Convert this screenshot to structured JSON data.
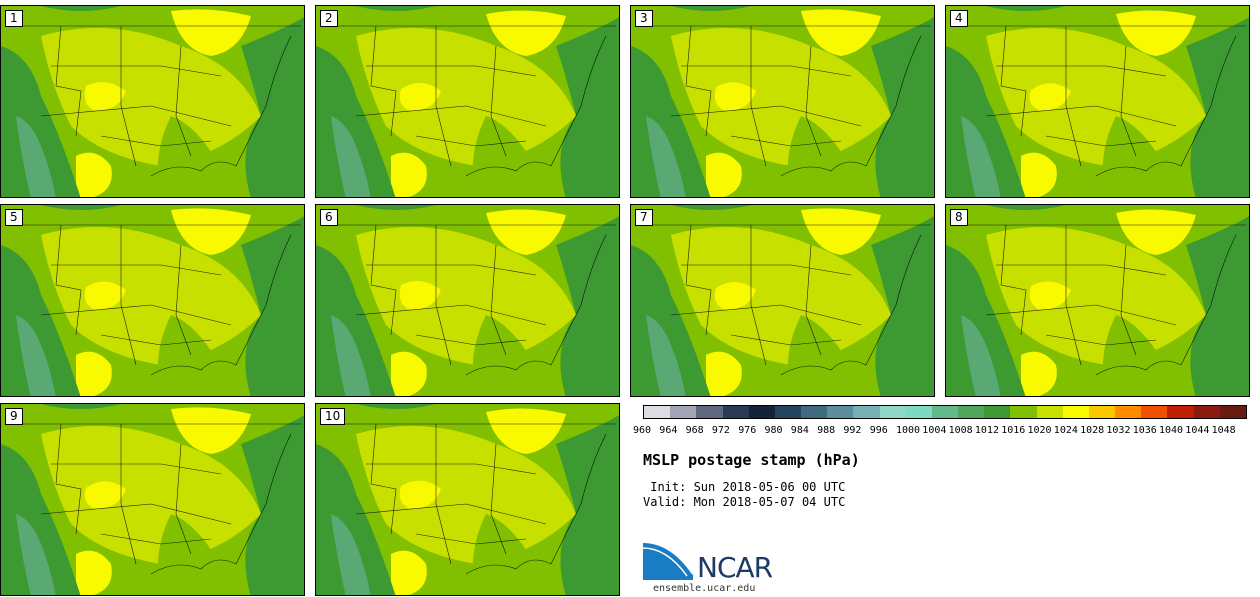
{
  "panels": [
    "1",
    "2",
    "3",
    "4",
    "5",
    "6",
    "7",
    "8",
    "9",
    "10"
  ],
  "colorbar": {
    "labels": [
      "960",
      "964",
      "968",
      "972",
      "976",
      "980",
      "984",
      "988",
      "992",
      "996",
      "1000",
      "1004",
      "1008",
      "1012",
      "1016",
      "1020",
      "1024",
      "1028",
      "1032",
      "1036",
      "1040",
      "1044",
      "1048"
    ],
    "colors": [
      "#dcdde3",
      "#a2a4b3",
      "#5f6780",
      "#2b3a57",
      "#152238",
      "#26455e",
      "#3f6a80",
      "#5a8e9c",
      "#76b0b4",
      "#8fd8c8",
      "#7ed9c1",
      "#64b98a",
      "#4ea75a",
      "#3d9a32",
      "#80c000",
      "#c8e000",
      "#f9f900",
      "#fbc800",
      "#ff8c00",
      "#f05000",
      "#c02000",
      "#8b1a10",
      "#6b1a10"
    ]
  },
  "title": "MSLP postage stamp (hPa)",
  "init": " Init: Sun 2018-05-06 00 UTC",
  "valid": "Valid: Mon 2018-05-07 04 UTC",
  "logo_text": "NCAR",
  "url": "ensemble.ucar.edu"
}
